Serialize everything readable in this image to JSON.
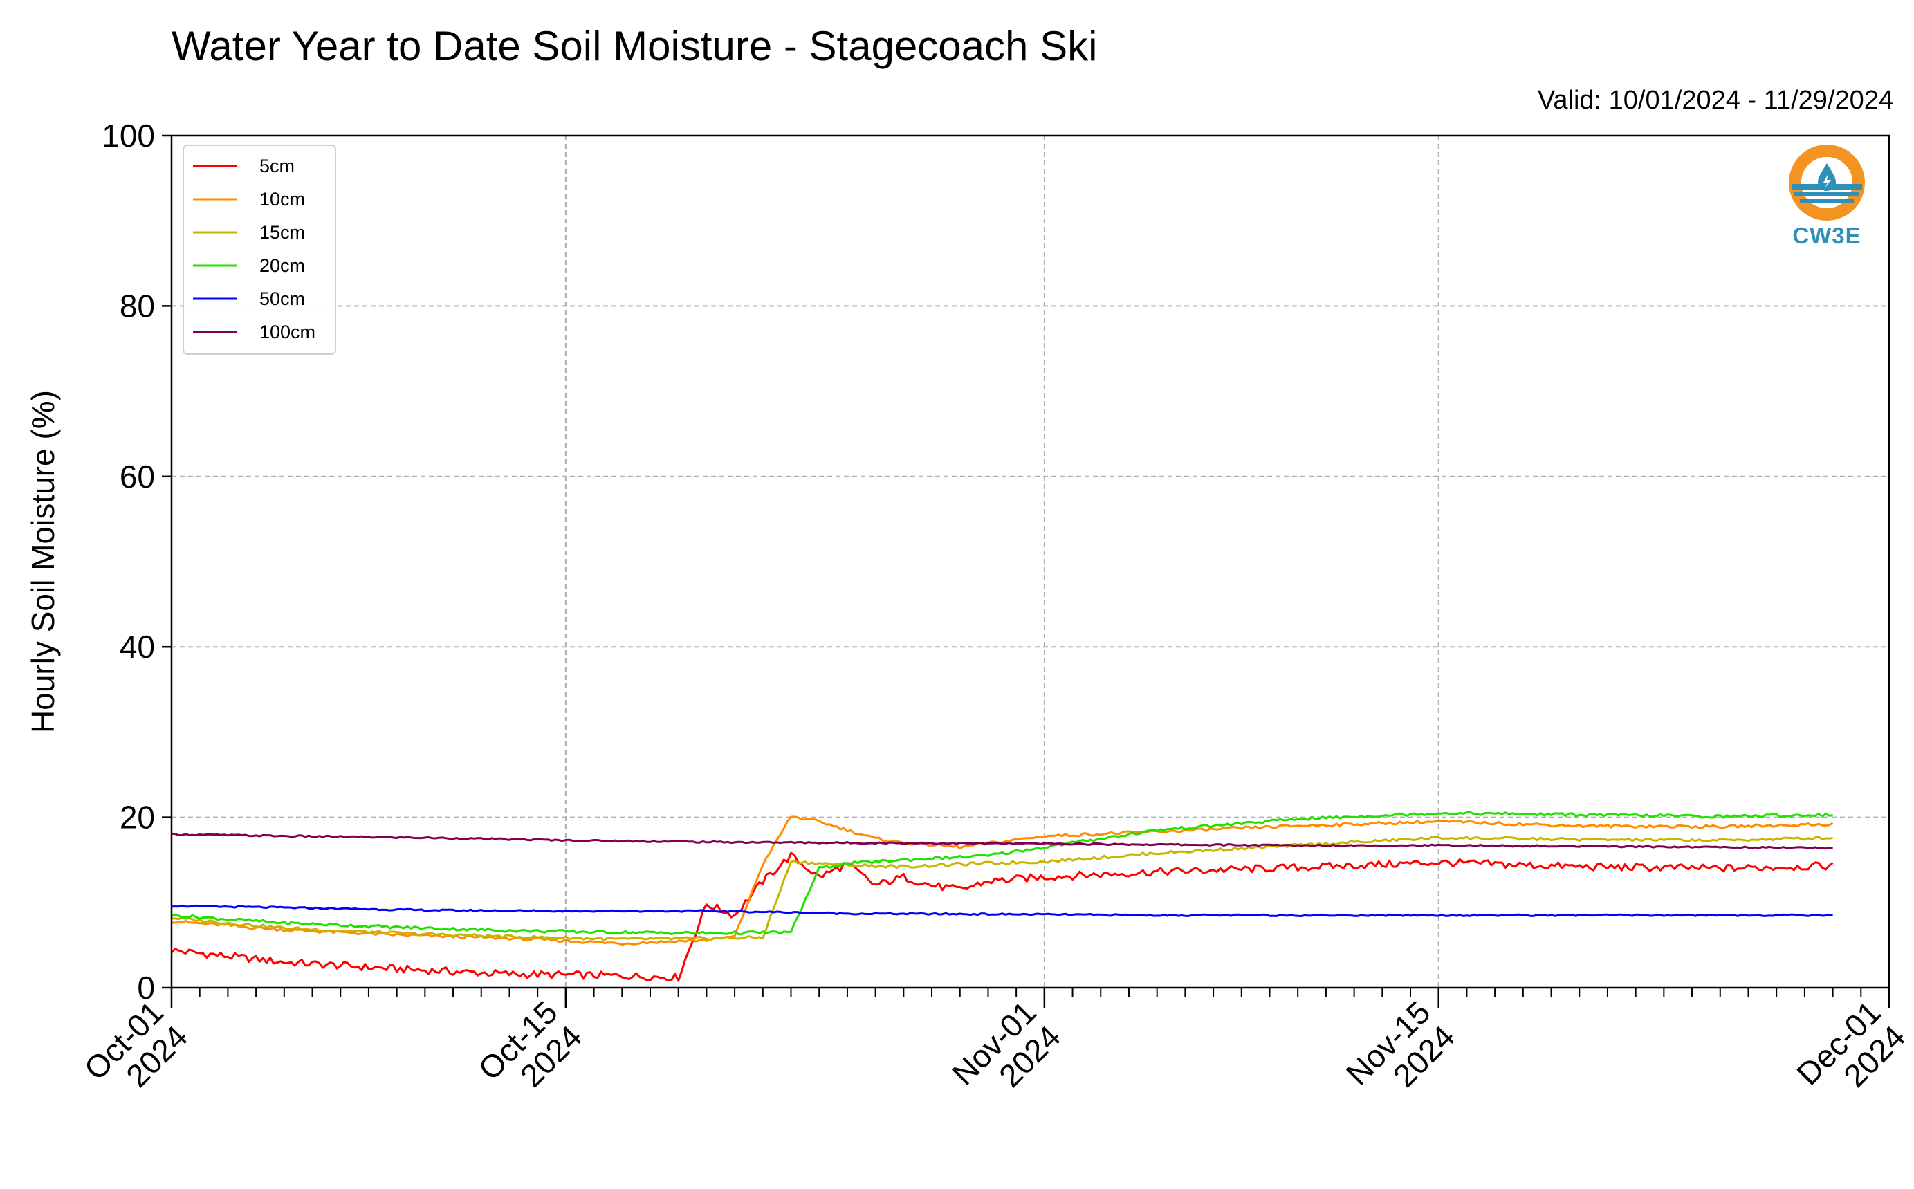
{
  "chart_data": {
    "type": "line",
    "title": "Water Year to Date Soil Moisture - Stagecoach Ski",
    "subtitle": "Valid: 10/01/2024 - 11/29/2024",
    "ylabel": "Hourly Soil Moisture (%)",
    "xlabel": "",
    "ylim": [
      0,
      100
    ],
    "yticks": [
      0,
      20,
      40,
      60,
      80,
      100
    ],
    "xlim": [
      "2024-10-01",
      "2024-12-01"
    ],
    "xticks": [
      {
        "date": "2024-10-01",
        "label": [
          "Oct-01",
          "2024"
        ]
      },
      {
        "date": "2024-10-15",
        "label": [
          "Oct-15",
          "2024"
        ]
      },
      {
        "date": "2024-11-01",
        "label": [
          "Nov-01",
          "2024"
        ]
      },
      {
        "date": "2024-11-15",
        "label": [
          "Nov-15",
          "2024"
        ]
      },
      {
        "date": "2024-12-01",
        "label": [
          "Dec-01",
          "2024"
        ]
      }
    ],
    "grid": true,
    "legend_position": "top-left",
    "series": [
      {
        "name": "5cm",
        "color": "#ff0000",
        "x": [
          "2024-10-01",
          "2024-10-05",
          "2024-10-09",
          "2024-10-13",
          "2024-10-17",
          "2024-10-19",
          "2024-10-20",
          "2024-10-21",
          "2024-10-22",
          "2024-10-23",
          "2024-10-24",
          "2024-10-25",
          "2024-10-26",
          "2024-10-27",
          "2024-10-28",
          "2024-10-29",
          "2024-10-30",
          "2024-11-01",
          "2024-11-05",
          "2024-11-10",
          "2024-11-15",
          "2024-11-20",
          "2024-11-25",
          "2024-11-29"
        ],
        "y": [
          4.4,
          3.0,
          2.2,
          1.6,
          1.4,
          1.2,
          9.8,
          8.5,
          12.5,
          15.5,
          13.0,
          14.5,
          12.0,
          13.0,
          12.0,
          11.5,
          12.5,
          13.0,
          13.6,
          14.1,
          14.7,
          14.2,
          14.0,
          14.3
        ]
      },
      {
        "name": "10cm",
        "color": "#ff8c00",
        "x": [
          "2024-10-01",
          "2024-10-05",
          "2024-10-09",
          "2024-10-13",
          "2024-10-17",
          "2024-10-20",
          "2024-10-21",
          "2024-10-22",
          "2024-10-23",
          "2024-10-24",
          "2024-10-25",
          "2024-10-26",
          "2024-10-27",
          "2024-10-28",
          "2024-10-29",
          "2024-11-01",
          "2024-11-05",
          "2024-11-10",
          "2024-11-15",
          "2024-11-20",
          "2024-11-25",
          "2024-11-29"
        ],
        "y": [
          7.8,
          6.8,
          6.2,
          5.8,
          5.2,
          5.6,
          6.0,
          14.5,
          20.1,
          19.5,
          18.5,
          17.5,
          17.0,
          16.8,
          16.5,
          17.8,
          18.3,
          19.0,
          19.5,
          19.0,
          18.9,
          19.2
        ]
      },
      {
        "name": "15cm",
        "color": "#c8b400",
        "x": [
          "2024-10-01",
          "2024-10-05",
          "2024-10-09",
          "2024-10-13",
          "2024-10-17",
          "2024-10-20",
          "2024-10-22",
          "2024-10-23",
          "2024-10-24",
          "2024-10-25",
          "2024-10-27",
          "2024-10-29",
          "2024-11-01",
          "2024-11-05",
          "2024-11-10",
          "2024-11-15",
          "2024-11-20",
          "2024-11-25",
          "2024-11-29"
        ],
        "y": [
          8.2,
          7.0,
          6.4,
          6.0,
          5.7,
          5.8,
          5.9,
          14.8,
          14.6,
          14.4,
          14.2,
          14.5,
          14.8,
          15.8,
          16.7,
          17.6,
          17.4,
          17.3,
          17.6
        ]
      },
      {
        "name": "20cm",
        "color": "#22e000",
        "x": [
          "2024-10-01",
          "2024-10-05",
          "2024-10-09",
          "2024-10-13",
          "2024-10-17",
          "2024-10-20",
          "2024-10-23",
          "2024-10-24",
          "2024-10-25",
          "2024-10-27",
          "2024-10-30",
          "2024-11-01",
          "2024-11-05",
          "2024-11-10",
          "2024-11-15",
          "2024-11-20",
          "2024-11-25",
          "2024-11-29"
        ],
        "y": [
          8.5,
          7.6,
          7.1,
          6.7,
          6.5,
          6.4,
          6.5,
          14.0,
          14.6,
          15.0,
          15.5,
          16.5,
          18.5,
          19.8,
          20.5,
          20.3,
          20.1,
          20.3
        ]
      },
      {
        "name": "50cm",
        "color": "#0000ff",
        "x": [
          "2024-10-01",
          "2024-10-05",
          "2024-10-10",
          "2024-10-15",
          "2024-10-20",
          "2024-10-22",
          "2024-10-25",
          "2024-11-01",
          "2024-11-05",
          "2024-11-10",
          "2024-11-15",
          "2024-11-20",
          "2024-11-25",
          "2024-11-29"
        ],
        "y": [
          9.6,
          9.4,
          9.1,
          9.0,
          9.0,
          8.9,
          8.7,
          8.6,
          8.5,
          8.5,
          8.5,
          8.5,
          8.5,
          8.5
        ]
      },
      {
        "name": "100cm",
        "color": "#800050",
        "x": [
          "2024-10-01",
          "2024-10-05",
          "2024-10-10",
          "2024-10-15",
          "2024-10-20",
          "2024-10-25",
          "2024-11-01",
          "2024-11-05",
          "2024-11-10",
          "2024-11-15",
          "2024-11-20",
          "2024-11-25",
          "2024-11-29"
        ],
        "y": [
          18.0,
          17.8,
          17.6,
          17.3,
          17.1,
          17.0,
          16.9,
          16.8,
          16.7,
          16.7,
          16.6,
          16.5,
          16.4
        ]
      }
    ]
  },
  "logo": {
    "text": "CW3E",
    "ring_color": "#f39322",
    "water_color": "#2e8fb8"
  }
}
